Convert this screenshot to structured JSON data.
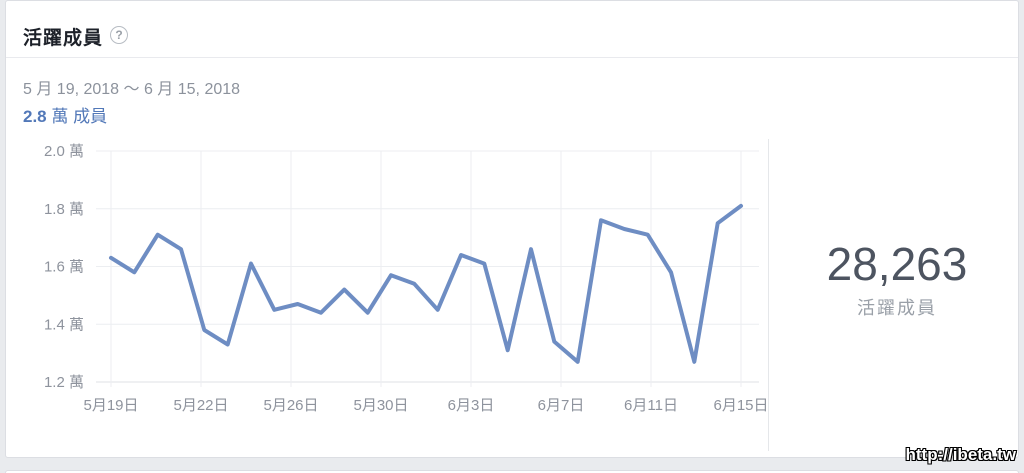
{
  "card": {
    "title": "活躍成員",
    "help_icon": "?",
    "date_range": "5 月 19, 2018 ～ 6 月 15, 2018",
    "summary_value": "2.8",
    "summary_unit": " 萬 成員"
  },
  "stats": {
    "value": "28,263",
    "label": "活躍成員"
  },
  "watermark": "http://ibeta.tw",
  "colors": {
    "line": "#6e8dc3",
    "grid": "#eceef1",
    "baseline": "#dfe1e5",
    "axis_text": "#8e939d",
    "accent_blue": "#5278b8",
    "big_number": "#4d5460"
  },
  "chart_data": {
    "type": "line",
    "title": "活躍成員",
    "unit": "萬 (tens of thousands of members)",
    "x": [
      "5月19日",
      "5月20日",
      "5月21日",
      "5月22日",
      "5月23日",
      "5月24日",
      "5月25日",
      "5月26日",
      "5月27日",
      "5月28日",
      "5月29日",
      "5月30日",
      "5月31日",
      "6月1日",
      "6月2日",
      "6月3日",
      "6月4日",
      "6月5日",
      "6月6日",
      "6月7日",
      "6月8日",
      "6月9日",
      "6月10日",
      "6月11日",
      "6月12日",
      "6月13日",
      "6月14日",
      "6月15日"
    ],
    "values": [
      1.63,
      1.58,
      1.71,
      1.66,
      1.38,
      1.33,
      1.61,
      1.45,
      1.47,
      1.44,
      1.52,
      1.44,
      1.57,
      1.54,
      1.45,
      1.64,
      1.61,
      1.31,
      1.66,
      1.34,
      1.27,
      1.76,
      1.73,
      1.71,
      1.58,
      1.27,
      1.75,
      1.81
    ],
    "xlabel": "",
    "ylabel": "",
    "ylim": [
      1.2,
      2.0
    ],
    "y_tick_values": [
      2.0,
      1.8,
      1.6,
      1.4,
      1.2
    ],
    "y_tick_labels": [
      "2.0 萬",
      "1.8 萬",
      "1.6 萬",
      "1.4 萬",
      "1.2 萬"
    ],
    "x_tick_labels": [
      "5月19日",
      "5月22日",
      "5月26日",
      "5月30日",
      "6月3日",
      "6月7日",
      "6月11日",
      "6月15日"
    ],
    "grid": "on",
    "legend": "none"
  }
}
